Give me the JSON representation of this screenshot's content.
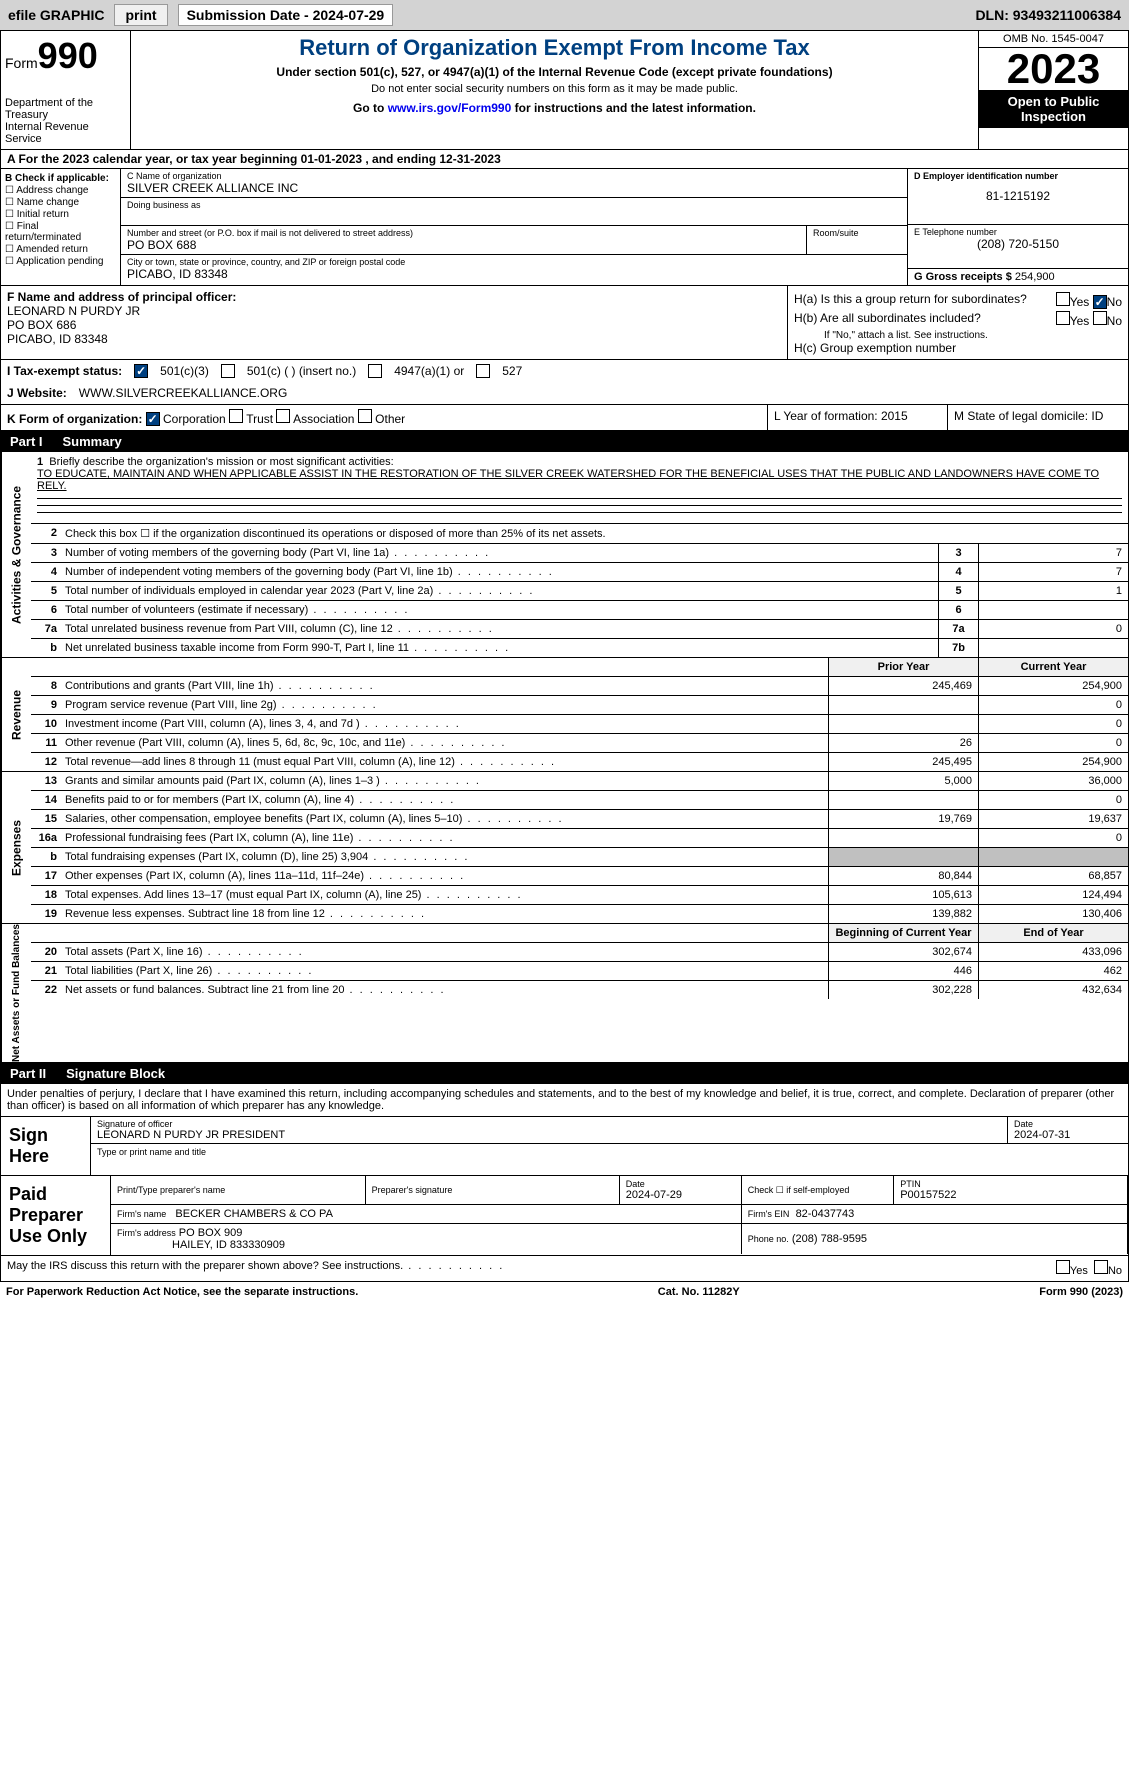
{
  "topbar": {
    "efile": "efile GRAPHIC",
    "print": "print",
    "submission": "Submission Date - 2024-07-29",
    "dln": "DLN: 93493211006384"
  },
  "header": {
    "form_label": "Form",
    "form_num": "990",
    "dept": "Department of the Treasury\nInternal Revenue Service",
    "title": "Return of Organization Exempt From Income Tax",
    "sub1": "Under section 501(c), 527, or 4947(a)(1) of the Internal Revenue Code (except private foundations)",
    "sub2": "Do not enter social security numbers on this form as it may be made public.",
    "goto": "Go to www.irs.gov/Form990 for instructions and the latest information.",
    "omb": "OMB No. 1545-0047",
    "year": "2023",
    "open": "Open to Public Inspection"
  },
  "row_a": "A For the 2023 calendar year, or tax year beginning 01-01-2023   , and ending 12-31-2023",
  "box_b": {
    "title": "B Check if applicable:",
    "items": [
      "Address change",
      "Name change",
      "Initial return",
      "Final return/terminated",
      "Amended return",
      "Application pending"
    ]
  },
  "box_c": {
    "name_lab": "C Name of organization",
    "name": "SILVER CREEK ALLIANCE INC",
    "dba_lab": "Doing business as",
    "dba": "",
    "addr_lab": "Number and street (or P.O. box if mail is not delivered to street address)",
    "addr": "PO BOX 688",
    "room_lab": "Room/suite",
    "city_lab": "City or town, state or province, country, and ZIP or foreign postal code",
    "city": "PICABO, ID  83348"
  },
  "box_d": {
    "lab": "D Employer identification number",
    "val": "81-1215192"
  },
  "box_e": {
    "lab": "E Telephone number",
    "val": "(208) 720-5150"
  },
  "box_g": {
    "lab": "G Gross receipts $",
    "val": "254,900"
  },
  "box_f": {
    "lab": "F  Name and address of principal officer:",
    "name": "LEONARD N PURDY JR",
    "addr": "PO BOX 686",
    "city": "PICABO, ID  83348"
  },
  "box_h": {
    "ha": "H(a)  Is this a group return for subordinates?",
    "hb": "H(b)  Are all subordinates included?",
    "hb_note": "If \"No,\" attach a list. See instructions.",
    "hc": "H(c)  Group exemption number",
    "yes": "Yes",
    "no": "No"
  },
  "row_i": {
    "lab": "I    Tax-exempt status:",
    "opt1": "501(c)(3)",
    "opt2": "501(c) (  ) (insert no.)",
    "opt3": "4947(a)(1) or",
    "opt4": "527"
  },
  "row_j": {
    "lab": "J   Website:",
    "val": "WWW.SILVERCREEKALLIANCE.ORG"
  },
  "row_k": {
    "lab": "K Form of organization:",
    "opts": [
      "Corporation",
      "Trust",
      "Association",
      "Other"
    ],
    "l": "L Year of formation: 2015",
    "m": "M State of legal domicile: ID"
  },
  "part1": {
    "num": "Part I",
    "title": "Summary"
  },
  "mission": {
    "num": "1",
    "lab": "Briefly describe the organization's mission or most significant activities:",
    "text": "TO EDUCATE, MAINTAIN AND WHEN APPLICABLE ASSIST IN THE RESTORATION OF THE SILVER CREEK WATERSHED FOR THE BENEFICIAL USES THAT THE PUBLIC AND LANDOWNERS HAVE COME TO RELY."
  },
  "line2": "Check this box ☐ if the organization discontinued its operations or disposed of more than 25% of its net assets.",
  "vtabs": {
    "gov": "Activities & Governance",
    "rev": "Revenue",
    "exp": "Expenses",
    "net": "Net Assets or Fund Balances"
  },
  "gov_rows": [
    {
      "n": "3",
      "d": "Number of voting members of the governing body (Part VI, line 1a)",
      "box": "3",
      "v": "7"
    },
    {
      "n": "4",
      "d": "Number of independent voting members of the governing body (Part VI, line 1b)",
      "box": "4",
      "v": "7"
    },
    {
      "n": "5",
      "d": "Total number of individuals employed in calendar year 2023 (Part V, line 2a)",
      "box": "5",
      "v": "1"
    },
    {
      "n": "6",
      "d": "Total number of volunteers (estimate if necessary)",
      "box": "6",
      "v": ""
    },
    {
      "n": "7a",
      "d": "Total unrelated business revenue from Part VIII, column (C), line 12",
      "box": "7a",
      "v": "0"
    },
    {
      "n": "b",
      "d": "Net unrelated business taxable income from Form 990-T, Part I, line 11",
      "box": "7b",
      "v": ""
    }
  ],
  "col_hdr": {
    "prior": "Prior Year",
    "curr": "Current Year"
  },
  "rev_rows": [
    {
      "n": "8",
      "d": "Contributions and grants (Part VIII, line 1h)",
      "p": "245,469",
      "c": "254,900"
    },
    {
      "n": "9",
      "d": "Program service revenue (Part VIII, line 2g)",
      "p": "",
      "c": "0"
    },
    {
      "n": "10",
      "d": "Investment income (Part VIII, column (A), lines 3, 4, and 7d )",
      "p": "",
      "c": "0"
    },
    {
      "n": "11",
      "d": "Other revenue (Part VIII, column (A), lines 5, 6d, 8c, 9c, 10c, and 11e)",
      "p": "26",
      "c": "0"
    },
    {
      "n": "12",
      "d": "Total revenue—add lines 8 through 11 (must equal Part VIII, column (A), line 12)",
      "p": "245,495",
      "c": "254,900"
    }
  ],
  "exp_rows": [
    {
      "n": "13",
      "d": "Grants and similar amounts paid (Part IX, column (A), lines 1–3 )",
      "p": "5,000",
      "c": "36,000"
    },
    {
      "n": "14",
      "d": "Benefits paid to or for members (Part IX, column (A), line 4)",
      "p": "",
      "c": "0"
    },
    {
      "n": "15",
      "d": "Salaries, other compensation, employee benefits (Part IX, column (A), lines 5–10)",
      "p": "19,769",
      "c": "19,637"
    },
    {
      "n": "16a",
      "d": "Professional fundraising fees (Part IX, column (A), line 11e)",
      "p": "",
      "c": "0"
    },
    {
      "n": "b",
      "d": "Total fundraising expenses (Part IX, column (D), line 25) 3,904",
      "p": "",
      "c": "",
      "grey": true
    },
    {
      "n": "17",
      "d": "Other expenses (Part IX, column (A), lines 11a–11d, 11f–24e)",
      "p": "80,844",
      "c": "68,857"
    },
    {
      "n": "18",
      "d": "Total expenses. Add lines 13–17 (must equal Part IX, column (A), line 25)",
      "p": "105,613",
      "c": "124,494"
    },
    {
      "n": "19",
      "d": "Revenue less expenses. Subtract line 18 from line 12",
      "p": "139,882",
      "c": "130,406"
    }
  ],
  "net_hdr": {
    "p": "Beginning of Current Year",
    "c": "End of Year"
  },
  "net_rows": [
    {
      "n": "20",
      "d": "Total assets (Part X, line 16)",
      "p": "302,674",
      "c": "433,096"
    },
    {
      "n": "21",
      "d": "Total liabilities (Part X, line 26)",
      "p": "446",
      "c": "462"
    },
    {
      "n": "22",
      "d": "Net assets or fund balances. Subtract line 21 from line 20",
      "p": "302,228",
      "c": "432,634"
    }
  ],
  "part2": {
    "num": "Part II",
    "title": "Signature Block"
  },
  "perjury": "Under penalties of perjury, I declare that I have examined this return, including accompanying schedules and statements, and to the best of my knowledge and belief, it is true, correct, and complete. Declaration of preparer (other than officer) is based on all information of which preparer has any knowledge.",
  "sign": {
    "here": "Sign Here",
    "sig_lab": "Signature of officer",
    "name": "LEONARD N PURDY JR  PRESIDENT",
    "name_lab": "Type or print name and title",
    "date_lab": "Date",
    "date": "2024-07-31"
  },
  "paid": {
    "title": "Paid Preparer Use Only",
    "prep_name_lab": "Print/Type preparer's name",
    "prep_sig_lab": "Preparer's signature",
    "date_lab": "Date",
    "date": "2024-07-29",
    "check_lab": "Check ☐ if self-employed",
    "ptin_lab": "PTIN",
    "ptin": "P00157522",
    "firm_lab": "Firm's name",
    "firm": "BECKER CHAMBERS & CO PA",
    "ein_lab": "Firm's EIN",
    "ein": "82-0437743",
    "addr_lab": "Firm's address",
    "addr": "PO BOX 909",
    "addr2": "HAILEY, ID  833330909",
    "phone_lab": "Phone no.",
    "phone": "(208) 788-9595"
  },
  "irs_discuss": "May the IRS discuss this return with the preparer shown above? See instructions.",
  "footer": {
    "pra": "For Paperwork Reduction Act Notice, see the separate instructions.",
    "cat": "Cat. No. 11282Y",
    "form": "Form 990 (2023)"
  }
}
